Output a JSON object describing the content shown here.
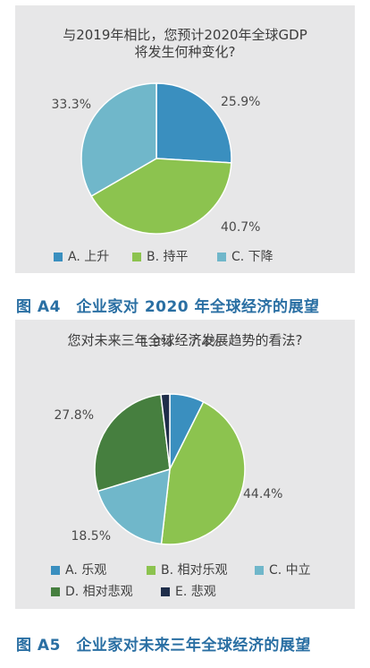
{
  "chart_data": [
    {
      "type": "pie",
      "title": "与2019年相比，您预计2020年全球GDP\n将发生何种变化?",
      "categories": [
        "A. 上升",
        "B. 持平",
        "C. 下降"
      ],
      "values": [
        25.9,
        40.7,
        33.3
      ],
      "value_labels": [
        "25.9%",
        "40.7%",
        "33.3%"
      ],
      "colors": [
        "#3a8fbf",
        "#8cc34f",
        "#70b7ca"
      ],
      "start_angle_deg": 0,
      "direction": "clockwise",
      "legend_position": "bottom"
    },
    {
      "type": "pie",
      "title": "您对未来三年全球经济发展趋势的看法?",
      "categories": [
        "A. 乐观",
        "B. 相对乐观",
        "C. 中立",
        "D. 相对悲观",
        "E. 悲观"
      ],
      "values": [
        7.4,
        44.4,
        18.5,
        27.8,
        1.9
      ],
      "value_labels": [
        "7.4%",
        "44.4%",
        "18.5%",
        "27.8%",
        "1.9%"
      ],
      "colors": [
        "#3a8fbf",
        "#8cc34f",
        "#70b7ca",
        "#467f3f",
        "#1f2e4a"
      ],
      "start_angle_deg": 0,
      "direction": "clockwise",
      "legend_position": "bottom"
    }
  ],
  "captions": {
    "a4": "图 A4　企业家对 2020 年全球经济的展望",
    "a5": "图 A5　企业家对未来三年全球经济的展望"
  }
}
